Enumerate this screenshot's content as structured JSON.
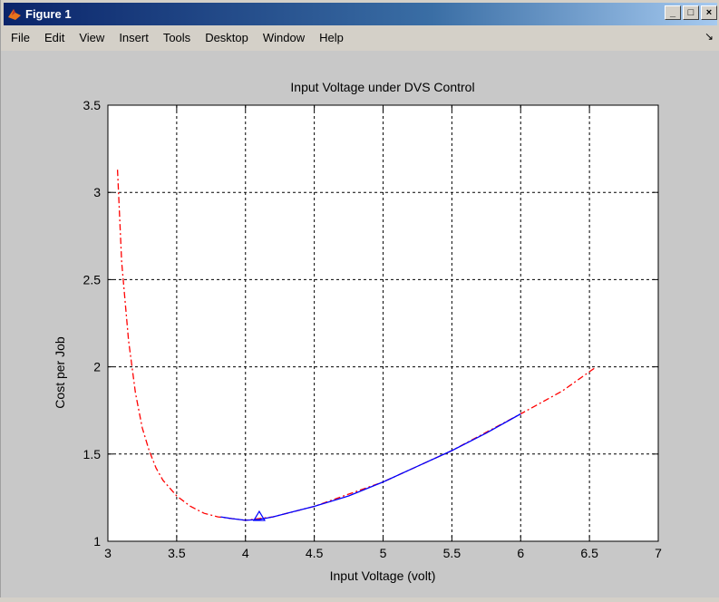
{
  "window": {
    "title": "Figure 1",
    "buttons": {
      "minimize": "_",
      "maximize": "□",
      "close": "×"
    }
  },
  "menu": [
    "File",
    "Edit",
    "View",
    "Insert",
    "Tools",
    "Desktop",
    "Window",
    "Help"
  ],
  "colors": {
    "red_series": "#ff0000",
    "blue_series": "#0000ff",
    "axes_bg": "#ffffff",
    "figure_bg": "#c8c8c8"
  },
  "chart_data": {
    "type": "line",
    "title": "Input Voltage under DVS Control",
    "xlabel": "Input Voltage (volt)",
    "ylabel": "Cost per Job",
    "xlim": [
      3,
      7
    ],
    "ylim": [
      1,
      3.5
    ],
    "xticks": [
      "3",
      "3.5",
      "4",
      "4.5",
      "5",
      "5.5",
      "6",
      "6.5",
      "7"
    ],
    "yticks": [
      "1",
      "1.5",
      "2",
      "2.5",
      "3",
      "3.5"
    ],
    "grid": true,
    "series": [
      {
        "style": "dash-dot",
        "color": "red",
        "x": [
          3.07,
          3.1,
          3.15,
          3.2,
          3.25,
          3.3,
          3.35,
          3.4,
          3.5,
          3.6,
          3.7,
          3.8,
          3.9,
          4.0,
          4.2,
          4.5,
          5.0,
          5.5,
          6.0,
          6.3,
          6.55
        ],
        "y": [
          3.13,
          2.6,
          2.15,
          1.85,
          1.65,
          1.52,
          1.42,
          1.35,
          1.26,
          1.2,
          1.16,
          1.14,
          1.13,
          1.12,
          1.14,
          1.2,
          1.34,
          1.52,
          1.73,
          1.86,
          2.0
        ]
      },
      {
        "style": "solid",
        "color": "blue",
        "x": [
          3.82,
          3.9,
          4.0,
          4.1,
          4.2,
          4.35,
          4.5,
          4.75,
          5.0,
          5.25,
          5.5,
          5.75,
          6.0
        ],
        "y": [
          1.14,
          1.13,
          1.12,
          1.125,
          1.14,
          1.17,
          1.2,
          1.26,
          1.34,
          1.43,
          1.52,
          1.62,
          1.73
        ]
      }
    ],
    "marker": {
      "shape": "triangle",
      "color": "blue",
      "x": 4.1,
      "y": 1.14
    }
  }
}
